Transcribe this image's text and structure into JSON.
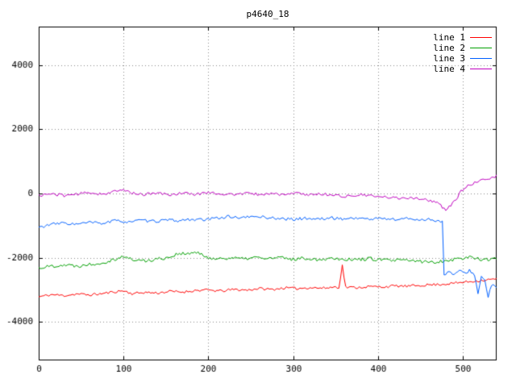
{
  "chart_data": {
    "type": "line",
    "title": "p4640_18",
    "xlabel": "",
    "ylabel": "",
    "xlim": [
      0,
      540
    ],
    "ylim": [
      -5200,
      5200
    ],
    "x_ticks": [
      0,
      100,
      200,
      300,
      400,
      500
    ],
    "y_ticks": [
      -4000,
      -2000,
      0,
      2000,
      4000
    ],
    "grid": true,
    "grid_color": "#888888",
    "border_color": "#000000",
    "legend_position": "top-right",
    "series": [
      {
        "name": "line 1",
        "color": "#ff0000",
        "noise": 40,
        "seed": 11,
        "points": [
          [
            0,
            -3220
          ],
          [
            15,
            -3150
          ],
          [
            30,
            -3180
          ],
          [
            45,
            -3130
          ],
          [
            60,
            -3160
          ],
          [
            75,
            -3120
          ],
          [
            90,
            -3060
          ],
          [
            100,
            -3030
          ],
          [
            110,
            -3120
          ],
          [
            125,
            -3080
          ],
          [
            140,
            -3100
          ],
          [
            155,
            -3050
          ],
          [
            170,
            -3070
          ],
          [
            185,
            -3020
          ],
          [
            200,
            -3010
          ],
          [
            215,
            -3040
          ],
          [
            230,
            -2990
          ],
          [
            245,
            -3010
          ],
          [
            260,
            -2960
          ],
          [
            275,
            -2990
          ],
          [
            290,
            -2940
          ],
          [
            305,
            -2960
          ],
          [
            320,
            -2930
          ],
          [
            335,
            -2950
          ],
          [
            350,
            -2910
          ],
          [
            354,
            -2920
          ],
          [
            358,
            -2250
          ],
          [
            362,
            -2920
          ],
          [
            375,
            -2930
          ],
          [
            390,
            -2900
          ],
          [
            405,
            -2910
          ],
          [
            420,
            -2880
          ],
          [
            435,
            -2890
          ],
          [
            450,
            -2860
          ],
          [
            465,
            -2840
          ],
          [
            480,
            -2820
          ],
          [
            495,
            -2780
          ],
          [
            510,
            -2740
          ],
          [
            525,
            -2700
          ],
          [
            540,
            -2660
          ]
        ]
      },
      {
        "name": "line 2",
        "color": "#00a000",
        "noise": 55,
        "seed": 22,
        "points": [
          [
            0,
            -2320
          ],
          [
            15,
            -2260
          ],
          [
            30,
            -2220
          ],
          [
            45,
            -2260
          ],
          [
            60,
            -2200
          ],
          [
            75,
            -2160
          ],
          [
            90,
            -2040
          ],
          [
            100,
            -1960
          ],
          [
            110,
            -2060
          ],
          [
            125,
            -2100
          ],
          [
            140,
            -2040
          ],
          [
            155,
            -1980
          ],
          [
            165,
            -1860
          ],
          [
            175,
            -1900
          ],
          [
            185,
            -1820
          ],
          [
            195,
            -1960
          ],
          [
            210,
            -2040
          ],
          [
            225,
            -2000
          ],
          [
            240,
            -2040
          ],
          [
            255,
            -1990
          ],
          [
            270,
            -2030
          ],
          [
            285,
            -2000
          ],
          [
            300,
            -2050
          ],
          [
            315,
            -2010
          ],
          [
            330,
            -2060
          ],
          [
            345,
            -2010
          ],
          [
            360,
            -2040
          ],
          [
            375,
            -2060
          ],
          [
            390,
            -2030
          ],
          [
            405,
            -2070
          ],
          [
            420,
            -2090
          ],
          [
            435,
            -2080
          ],
          [
            450,
            -2120
          ],
          [
            465,
            -2140
          ],
          [
            480,
            -2090
          ],
          [
            495,
            -2030
          ],
          [
            510,
            -1980
          ],
          [
            525,
            -2060
          ],
          [
            540,
            -2040
          ]
        ]
      },
      {
        "name": "line 3",
        "color": "#0060ff",
        "noise": 45,
        "seed": 33,
        "points": [
          [
            0,
            -1060
          ],
          [
            15,
            -960
          ],
          [
            30,
            -920
          ],
          [
            45,
            -960
          ],
          [
            60,
            -900
          ],
          [
            75,
            -930
          ],
          [
            90,
            -850
          ],
          [
            105,
            -880
          ],
          [
            120,
            -840
          ],
          [
            135,
            -870
          ],
          [
            150,
            -830
          ],
          [
            165,
            -850
          ],
          [
            180,
            -800
          ],
          [
            195,
            -830
          ],
          [
            210,
            -760
          ],
          [
            225,
            -720
          ],
          [
            240,
            -760
          ],
          [
            255,
            -710
          ],
          [
            270,
            -750
          ],
          [
            285,
            -780
          ],
          [
            300,
            -810
          ],
          [
            315,
            -770
          ],
          [
            330,
            -800
          ],
          [
            345,
            -760
          ],
          [
            360,
            -790
          ],
          [
            375,
            -760
          ],
          [
            390,
            -800
          ],
          [
            405,
            -770
          ],
          [
            420,
            -810
          ],
          [
            435,
            -780
          ],
          [
            450,
            -820
          ],
          [
            460,
            -800
          ],
          [
            470,
            -850
          ],
          [
            476,
            -870
          ],
          [
            478,
            -2560
          ],
          [
            484,
            -2440
          ],
          [
            490,
            -2520
          ],
          [
            496,
            -2420
          ],
          [
            502,
            -2480
          ],
          [
            508,
            -2400
          ],
          [
            514,
            -2520
          ],
          [
            518,
            -3140
          ],
          [
            522,
            -2600
          ],
          [
            526,
            -2700
          ],
          [
            530,
            -3240
          ],
          [
            534,
            -2840
          ],
          [
            540,
            -2940
          ]
        ]
      },
      {
        "name": "line 4",
        "color": "#c000c0",
        "noise": 45,
        "seed": 44,
        "points": [
          [
            0,
            -60
          ],
          [
            15,
            -10
          ],
          [
            30,
            -60
          ],
          [
            45,
            -20
          ],
          [
            60,
            30
          ],
          [
            75,
            -20
          ],
          [
            90,
            60
          ],
          [
            100,
            110
          ],
          [
            110,
            20
          ],
          [
            125,
            -30
          ],
          [
            140,
            10
          ],
          [
            155,
            -40
          ],
          [
            170,
            20
          ],
          [
            185,
            -30
          ],
          [
            200,
            40
          ],
          [
            215,
            -10
          ],
          [
            230,
            -40
          ],
          [
            245,
            10
          ],
          [
            260,
            -30
          ],
          [
            275,
            0
          ],
          [
            290,
            -40
          ],
          [
            305,
            10
          ],
          [
            320,
            -40
          ],
          [
            335,
            -10
          ],
          [
            350,
            -60
          ],
          [
            365,
            -90
          ],
          [
            380,
            -40
          ],
          [
            395,
            -90
          ],
          [
            410,
            -120
          ],
          [
            425,
            -140
          ],
          [
            440,
            -130
          ],
          [
            455,
            -180
          ],
          [
            465,
            -250
          ],
          [
            472,
            -330
          ],
          [
            480,
            -500
          ],
          [
            486,
            -380
          ],
          [
            492,
            -180
          ],
          [
            498,
            60
          ],
          [
            505,
            230
          ],
          [
            515,
            330
          ],
          [
            525,
            420
          ],
          [
            532,
            460
          ],
          [
            540,
            560
          ]
        ]
      }
    ]
  }
}
